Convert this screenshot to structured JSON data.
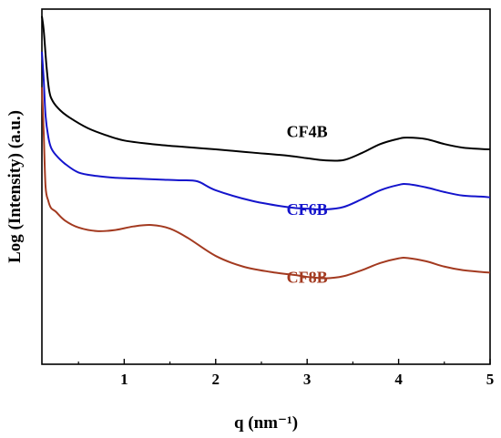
{
  "chart_data": {
    "type": "line",
    "title": "",
    "xlabel": "q (nm⁻¹)",
    "ylabel": "Log (Intensity)  (a.u.)",
    "xlim": [
      0.1,
      5.0
    ],
    "ylim": [
      0,
      100
    ],
    "xticks": [
      "1",
      "2",
      "3",
      "4",
      "5"
    ],
    "yticks": [],
    "grid": false,
    "legend": "none",
    "series": [
      {
        "name": "CF4B",
        "color": "#000000",
        "label_at": [
          3.0,
          64
        ],
        "x": [
          0.1,
          0.12,
          0.15,
          0.18,
          0.22,
          0.3,
          0.4,
          0.6,
          0.8,
          1.0,
          1.3,
          1.6,
          2.0,
          2.4,
          2.8,
          3.0,
          3.2,
          3.4,
          3.6,
          3.8,
          4.0,
          4.1,
          4.3,
          4.5,
          4.7,
          4.9,
          5.0
        ],
        "y": [
          98,
          94,
          84,
          77,
          74,
          71.5,
          69.5,
          66.5,
          64.5,
          63,
          62,
          61.3,
          60.5,
          59.6,
          58.7,
          58,
          57.4,
          57.5,
          59.5,
          62,
          63.5,
          63.8,
          63.4,
          62,
          61,
          60.6,
          60.5
        ]
      },
      {
        "name": "CF6B",
        "color": "#1414cc",
        "label_at": [
          3.0,
          42
        ],
        "x": [
          0.1,
          0.12,
          0.14,
          0.17,
          0.2,
          0.25,
          0.35,
          0.5,
          0.7,
          0.9,
          1.1,
          1.4,
          1.6,
          1.8,
          2.0,
          2.4,
          2.8,
          3.0,
          3.2,
          3.4,
          3.6,
          3.8,
          4.0,
          4.1,
          4.3,
          4.5,
          4.7,
          4.9,
          5.0
        ],
        "y": [
          88,
          80,
          70,
          64,
          61,
          59,
          56.5,
          54,
          53,
          52.5,
          52.3,
          52,
          51.8,
          51.5,
          49,
          46,
          44.2,
          43.8,
          43.6,
          44.3,
          46.5,
          49,
          50.5,
          50.7,
          49.8,
          48.5,
          47.5,
          47.2,
          47
        ]
      },
      {
        "name": "CF8B",
        "color": "#a33a20",
        "label_at": [
          3.0,
          23
        ],
        "x": [
          0.1,
          0.12,
          0.14,
          0.17,
          0.2,
          0.25,
          0.35,
          0.5,
          0.7,
          0.9,
          1.1,
          1.3,
          1.5,
          1.7,
          2.0,
          2.3,
          2.6,
          2.9,
          3.0,
          3.2,
          3.4,
          3.6,
          3.8,
          4.0,
          4.1,
          4.3,
          4.5,
          4.7,
          4.9,
          5.0
        ],
        "y": [
          78,
          65,
          50,
          46,
          44,
          43,
          40.5,
          38.5,
          37.5,
          37.8,
          38.8,
          39.2,
          38.2,
          35.5,
          30.5,
          27.5,
          26,
          25,
          24.6,
          24.2,
          24.8,
          26.5,
          28.5,
          29.8,
          29.9,
          29,
          27.5,
          26.5,
          26,
          25.8
        ]
      }
    ]
  }
}
